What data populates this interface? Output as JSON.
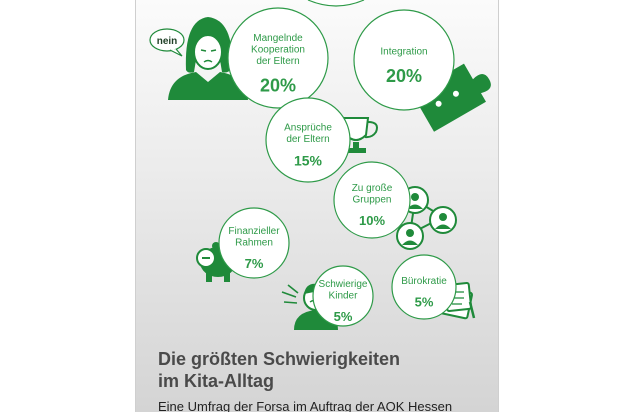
{
  "chart_data": {
    "type": "bubble",
    "title": "Die größten Schwierigkeiten im Kita-Alltag",
    "title_lines": [
      "Die größten Schwierigkeiten",
      "im Kita-Alltag"
    ],
    "subtitle": "Eine Umfrag der Forsa im Auftrag der AOK Hessen",
    "items": [
      {
        "label_lines": [
          "Mangelnde",
          "Kooperation",
          "der Eltern"
        ],
        "value": 20,
        "display": "20%"
      },
      {
        "label_lines": [
          "Integration"
        ],
        "value": 20,
        "display": "20%"
      },
      {
        "label_lines": [
          "Ansprüche",
          "der Eltern"
        ],
        "value": 15,
        "display": "15%"
      },
      {
        "label_lines": [
          "Zu große",
          "Gruppen"
        ],
        "value": 10,
        "display": "10%"
      },
      {
        "label_lines": [
          "Finanzieller",
          "Rahmen"
        ],
        "value": 7,
        "display": "7%"
      },
      {
        "label_lines": [
          "Schwierige",
          "Kinder"
        ],
        "value": 5,
        "display": "5%"
      },
      {
        "label_lines": [
          "Bürokratie"
        ],
        "value": 5,
        "display": "5%"
      }
    ],
    "speech_bubble": "nein"
  },
  "colors": {
    "accent": "#2e9a48",
    "icon": "#1f8a3a"
  },
  "icons": [
    "woman-icon",
    "puzzle-icon",
    "trophy-icon",
    "group-icon",
    "piggy-bank-icon",
    "child-icon",
    "documents-icon"
  ]
}
